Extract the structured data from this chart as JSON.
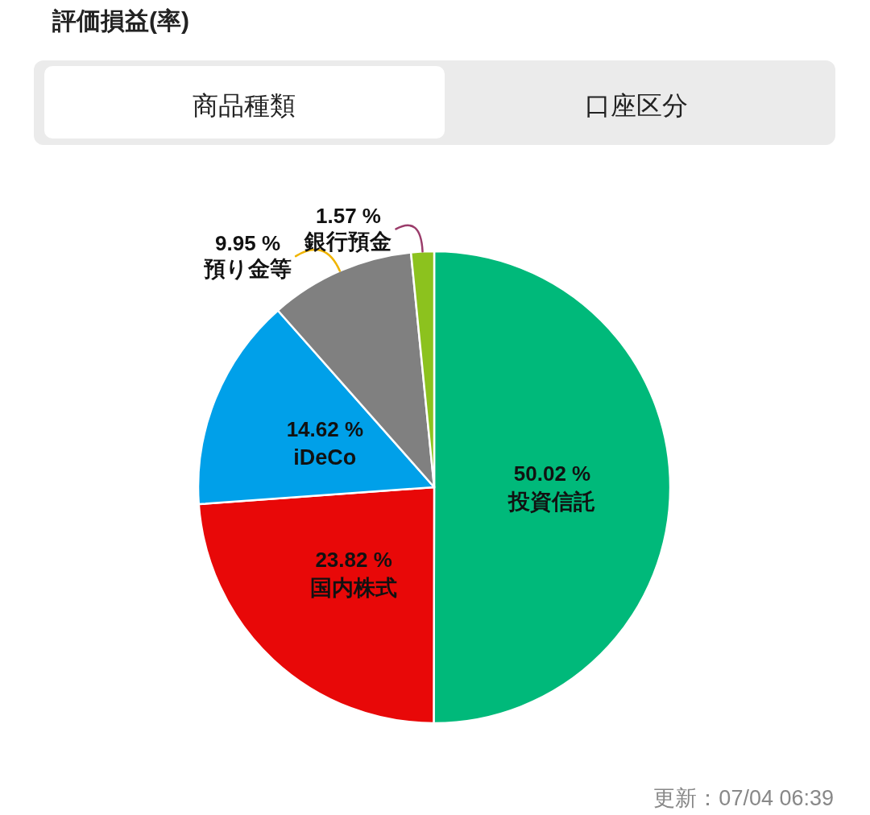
{
  "chart_data": {
    "type": "pie",
    "categories": [
      "投資信託",
      "国内株式",
      "iDeCo",
      "預り金等",
      "銀行預金"
    ],
    "values": [
      50.02,
      23.82,
      14.62,
      9.95,
      1.57
    ],
    "colors": [
      "#00b97a",
      "#e80808",
      "#00a0e9",
      "#808080",
      "#8cc21e"
    ],
    "value_labels": [
      "50.02 %",
      "23.82 %",
      "14.62 %",
      "9.95 %",
      "1.57 %"
    ],
    "annotations": [
      "評価損益(率)",
      "商品種類",
      "口座区分",
      "更新：07/04 06:39"
    ]
  }
}
